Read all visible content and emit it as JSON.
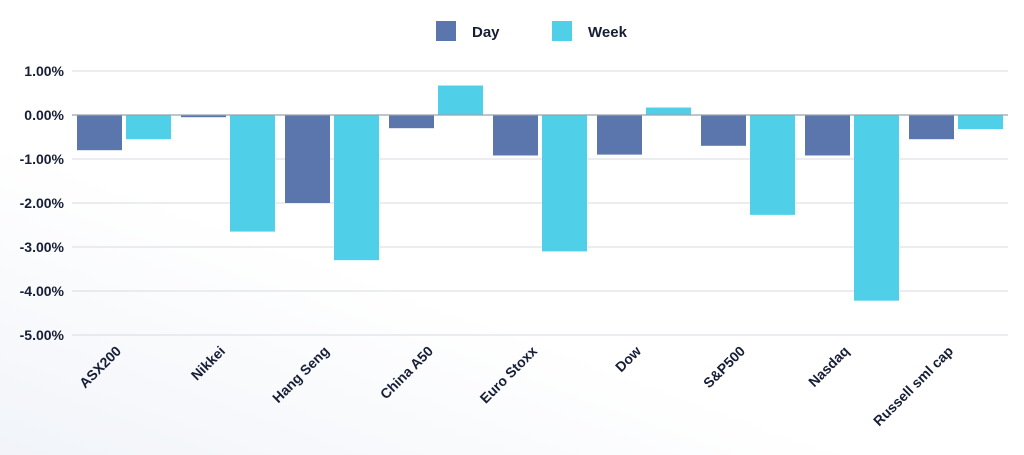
{
  "chart_data": {
    "type": "bar",
    "categories": [
      "ASX200",
      "Nikkei",
      "Hang Seng",
      "China A50",
      "Euro Stoxx",
      "Dow",
      "S&P500",
      "Nasdaq",
      "Russell sml cap"
    ],
    "series": [
      {
        "name": "Day",
        "color": "#5a76ad",
        "values": [
          -0.8,
          -0.05,
          -2.0,
          -0.3,
          -0.92,
          -0.9,
          -0.7,
          -0.92,
          -0.55
        ]
      },
      {
        "name": "Week",
        "color": "#4fd0e8",
        "values": [
          -0.55,
          -2.65,
          -3.3,
          0.67,
          -3.1,
          0.17,
          -2.27,
          -4.22,
          -0.32
        ]
      }
    ],
    "yticks": [
      1.0,
      0.0,
      -1.0,
      -2.0,
      -3.0,
      -4.0,
      -5.0
    ],
    "ytick_labels": [
      "1.00%",
      "0.00%",
      "-1.00%",
      "-2.00%",
      "-3.00%",
      "-4.00%",
      "-5.00%"
    ],
    "ylim": [
      -5.0,
      1.0
    ],
    "grid": true,
    "legend_position": "top-center",
    "title": "",
    "xlabel": "",
    "ylabel": ""
  },
  "colors": {
    "text": "#161d35",
    "grid": "#d7dbe2",
    "zero_line": "#9aa1ad"
  }
}
